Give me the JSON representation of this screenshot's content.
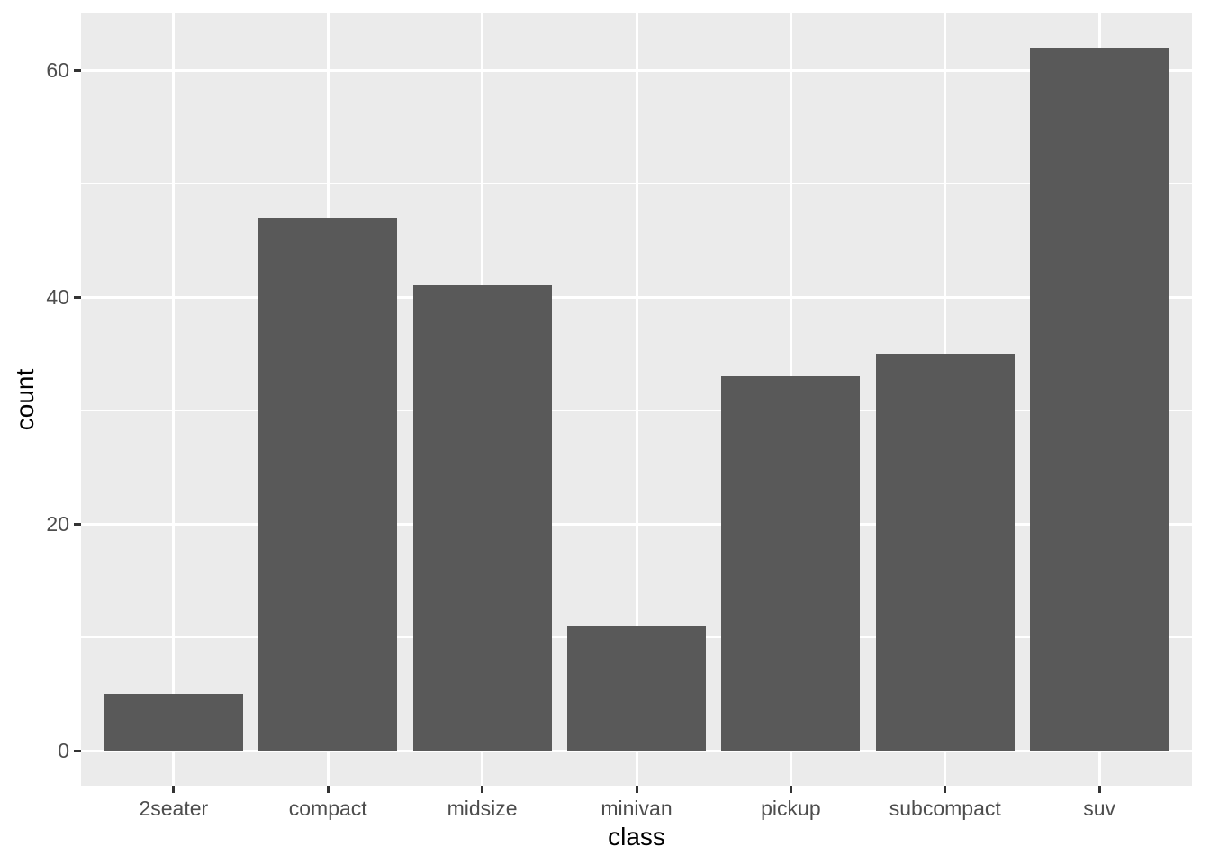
{
  "chart_data": {
    "type": "bar",
    "title": "",
    "xlabel": "class",
    "ylabel": "count",
    "categories": [
      "2seater",
      "compact",
      "midsize",
      "minivan",
      "pickup",
      "subcompact",
      "suv"
    ],
    "values": [
      5,
      47,
      41,
      11,
      33,
      35,
      62
    ],
    "ylim": [
      0,
      62
    ],
    "y_major_ticks": [
      0,
      20,
      40,
      60
    ],
    "y_minor_ticks": [
      10,
      30,
      50
    ],
    "y_tick_labels": [
      "0",
      "20",
      "40",
      "60"
    ],
    "grid": "on",
    "legend": "none",
    "style": "ggplot2-theme-grey",
    "colors": {
      "bar_fill": "#595959",
      "panel_background": "#EBEBEB",
      "gridline": "#FFFFFF",
      "tick_mark": "#333333",
      "tick_label": "#4D4D4D",
      "axis_title": "#000000",
      "page_background": "#FFFFFF"
    }
  }
}
